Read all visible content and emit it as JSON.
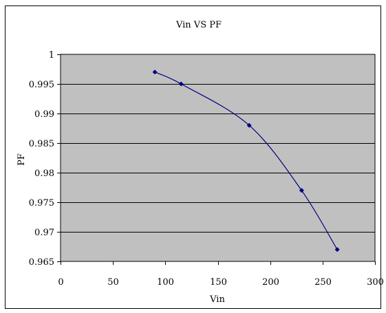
{
  "chart_data": {
    "type": "scatter",
    "title": "Vin VS PF",
    "xlabel": "Vin",
    "ylabel": "PF",
    "xlim": [
      0,
      300
    ],
    "ylim": [
      0.965,
      1
    ],
    "x_ticks": [
      0,
      50,
      100,
      150,
      200,
      250,
      300
    ],
    "y_ticks": [
      0.965,
      0.97,
      0.975,
      0.98,
      0.985,
      0.99,
      0.995,
      1
    ],
    "x_tick_labels": [
      "0",
      "50",
      "100",
      "150",
      "200",
      "250",
      "300"
    ],
    "y_tick_labels": [
      "0.965",
      "0.97",
      "0.975",
      "0.98",
      "0.985",
      "0.99",
      "0.995",
      "1"
    ],
    "grid": "horizontal",
    "smooth_line": true,
    "series": [
      {
        "x": [
          90,
          115,
          180,
          230,
          264
        ],
        "y": [
          0.997,
          0.995,
          0.988,
          0.977,
          0.967
        ]
      }
    ],
    "colors": {
      "plot_background": "#c0c0c0",
      "series": "#000080",
      "grid": "#000000",
      "border": "#000000"
    }
  }
}
